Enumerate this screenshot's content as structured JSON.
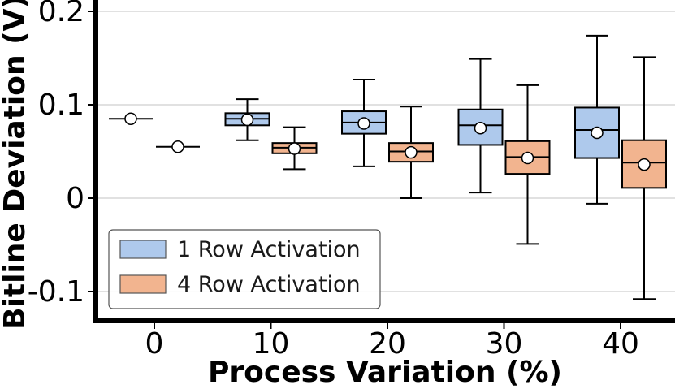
{
  "chart_data": {
    "type": "box",
    "title": "",
    "xlabel": "Process Variation (%)",
    "ylabel": "Bitline Deviation (V)",
    "categories": [
      "0",
      "10",
      "20",
      "30",
      "40"
    ],
    "ylim": [
      -0.133,
      0.205
    ],
    "yticks": [
      {
        "value": 0.2,
        "label": "0.2"
      },
      {
        "value": 0.1,
        "label": "0.1"
      },
      {
        "value": 0,
        "label": "0"
      },
      {
        "value": -0.1,
        "label": "-0.1"
      }
    ],
    "grid": true,
    "legend_position": "lower-left",
    "series": [
      {
        "name": "1 Row Activation",
        "color": "#aec9ec",
        "boxes": [
          {
            "category": "0",
            "whisker_low": 0.085,
            "q1": 0.085,
            "median": 0.085,
            "q3": 0.085,
            "whisker_high": 0.085,
            "mean": 0.085
          },
          {
            "category": "10",
            "whisker_low": 0.062,
            "q1": 0.078,
            "median": 0.085,
            "q3": 0.091,
            "whisker_high": 0.106,
            "mean": 0.084
          },
          {
            "category": "20",
            "whisker_low": 0.034,
            "q1": 0.069,
            "median": 0.081,
            "q3": 0.093,
            "whisker_high": 0.127,
            "mean": 0.08
          },
          {
            "category": "30",
            "whisker_low": 0.006,
            "q1": 0.057,
            "median": 0.078,
            "q3": 0.095,
            "whisker_high": 0.149,
            "mean": 0.075
          },
          {
            "category": "40",
            "whisker_low": -0.006,
            "q1": 0.043,
            "median": 0.073,
            "q3": 0.097,
            "whisker_high": 0.174,
            "mean": 0.07
          }
        ]
      },
      {
        "name": "4 Row Activation",
        "color": "#f2b48f",
        "boxes": [
          {
            "category": "0",
            "whisker_low": 0.055,
            "q1": 0.055,
            "median": 0.055,
            "q3": 0.055,
            "whisker_high": 0.055,
            "mean": 0.055
          },
          {
            "category": "10",
            "whisker_low": 0.031,
            "q1": 0.048,
            "median": 0.054,
            "q3": 0.059,
            "whisker_high": 0.076,
            "mean": 0.053
          },
          {
            "category": "20",
            "whisker_low": 0.0,
            "q1": 0.039,
            "median": 0.05,
            "q3": 0.059,
            "whisker_high": 0.098,
            "mean": 0.049
          },
          {
            "category": "30",
            "whisker_low": -0.049,
            "q1": 0.026,
            "median": 0.044,
            "q3": 0.061,
            "whisker_high": 0.121,
            "mean": 0.043
          },
          {
            "category": "40",
            "whisker_low": -0.108,
            "q1": 0.011,
            "median": 0.038,
            "q3": 0.062,
            "whisker_high": 0.151,
            "mean": 0.036
          }
        ]
      }
    ]
  }
}
